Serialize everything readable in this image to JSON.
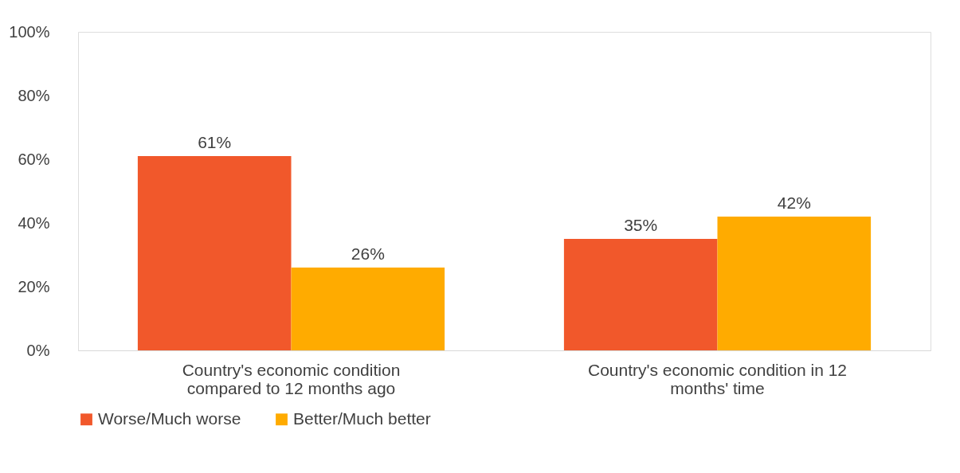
{
  "chart_data": {
    "type": "bar",
    "categories": [
      "Country's economic condition compared to 12 months ago",
      "Country's economic condition in 12 months' time"
    ],
    "series": [
      {
        "name": "Worse/Much worse",
        "color": "#f1582b",
        "values": [
          61,
          35
        ],
        "value_labels": [
          "61%",
          "35%"
        ]
      },
      {
        "name": "Better/Much better",
        "color": "#ffab00",
        "values": [
          26,
          42
        ],
        "value_labels": [
          "26%",
          "42%"
        ]
      }
    ],
    "ylim": [
      0,
      100
    ],
    "yticks": [
      {
        "value": 0,
        "label": "0%"
      },
      {
        "value": 20,
        "label": "20%"
      },
      {
        "value": 40,
        "label": "40%"
      },
      {
        "value": 60,
        "label": "60%"
      },
      {
        "value": 80,
        "label": "80%"
      },
      {
        "value": 100,
        "label": "100%"
      }
    ],
    "grid": false,
    "legend": "bottom"
  }
}
